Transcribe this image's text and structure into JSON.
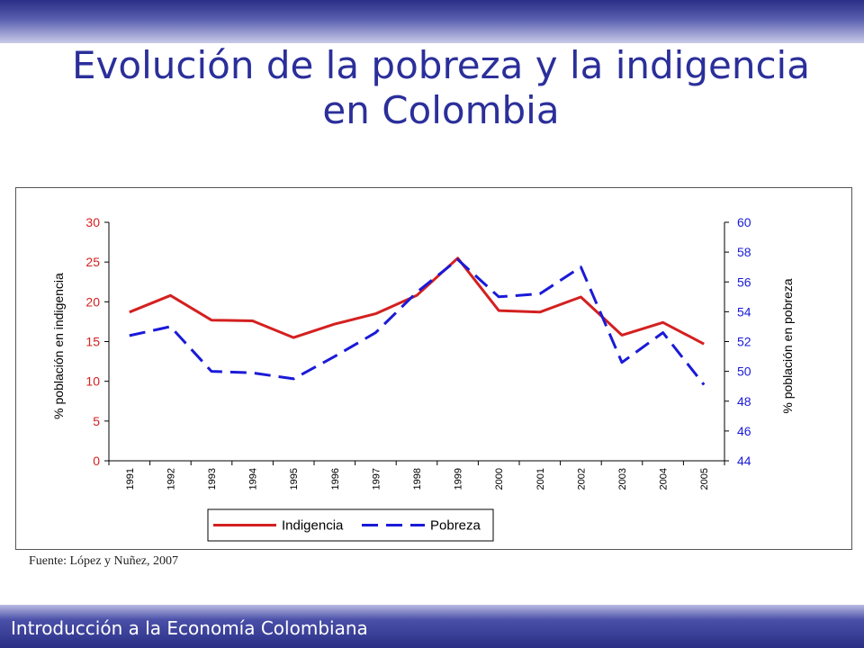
{
  "slide": {
    "title_line1": "Evolución de la pobreza y la indigencia",
    "title_line2": "en Colombia",
    "source": "Fuente: López y Nuñez, 2007",
    "footer": "Introducción a la Economía Colombiana"
  },
  "chart_data": {
    "type": "line",
    "categories": [
      "1991",
      "1992",
      "1993",
      "1994",
      "1995",
      "1996",
      "1997",
      "1998",
      "1999",
      "2000",
      "2001",
      "2002",
      "2003",
      "2004",
      "2005"
    ],
    "series": [
      {
        "name": "Indigencia",
        "axis": "left",
        "color": "#d42020",
        "dash": false,
        "values": [
          18.7,
          20.8,
          17.7,
          17.6,
          15.5,
          17.2,
          18.5,
          20.8,
          25.5,
          18.9,
          18.7,
          20.6,
          15.8,
          17.4,
          14.7
        ]
      },
      {
        "name": "Pobreza",
        "axis": "right",
        "color": "#1a1ad8",
        "dash": true,
        "values": [
          52.4,
          53.0,
          50.0,
          49.9,
          49.5,
          51.0,
          52.6,
          55.3,
          57.5,
          55.0,
          55.2,
          57.0,
          50.6,
          52.6,
          49.1
        ]
      }
    ],
    "ylabel": "% población en indigencia",
    "y2label": "% población en pobreza",
    "ylim": [
      0,
      30
    ],
    "y2lim": [
      44,
      60
    ],
    "yticks": [
      0,
      5,
      10,
      15,
      20,
      25,
      30
    ],
    "y2ticks": [
      44,
      46,
      48,
      50,
      52,
      54,
      56,
      58,
      60
    ],
    "left_axis_color": "#d42020",
    "right_axis_color": "#1a1ad8",
    "legend_position": "bottom"
  }
}
